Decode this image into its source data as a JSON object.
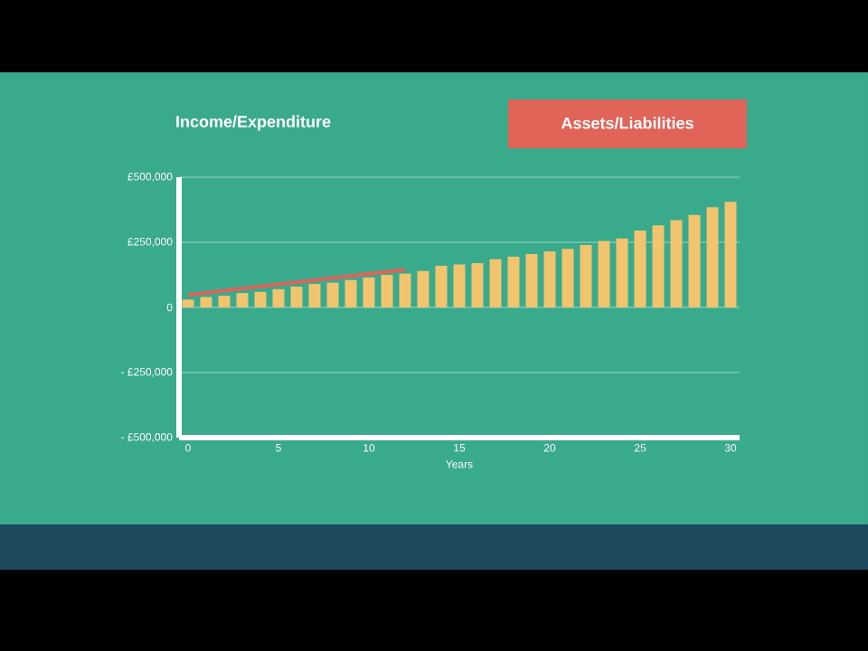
{
  "chart_data": {
    "type": "bar",
    "annotations": [
      "Income/Expenditure",
      "Assets/Liabilities"
    ],
    "xlabel": "Years",
    "x": [
      0,
      1,
      2,
      3,
      4,
      5,
      6,
      7,
      8,
      9,
      10,
      11,
      12,
      13,
      14,
      15,
      16,
      17,
      18,
      19,
      20,
      21,
      22,
      23,
      24,
      25,
      26,
      27,
      28,
      29,
      30
    ],
    "xlim": [
      -0.5,
      30.5
    ],
    "xticks": [
      0,
      5,
      10,
      15,
      20,
      25,
      30
    ],
    "ylim": [
      -500000,
      500000
    ],
    "yticks": [
      {
        "value": -500000,
        "label": "- £500,000"
      },
      {
        "value": -250000,
        "label": "- £250,000"
      },
      {
        "value": 0,
        "label": "0"
      },
      {
        "value": 250000,
        "label": "£250,000"
      },
      {
        "value": 500000,
        "label": "£500,000"
      }
    ],
    "grid": "y",
    "series": [
      {
        "color": "#f2c46d",
        "values": [
          30000,
          40000,
          45000,
          55000,
          60000,
          70000,
          80000,
          90000,
          95000,
          105000,
          115000,
          125000,
          130000,
          140000,
          160000,
          165000,
          170000,
          185000,
          195000,
          205000,
          215000,
          225000,
          240000,
          255000,
          265000,
          295000,
          315000,
          335000,
          355000,
          385000,
          405000
        ]
      },
      {
        "type": "line",
        "color": "#d9665a",
        "x": [
          0,
          12
        ],
        "values": [
          48000,
          145000
        ]
      }
    ]
  }
}
